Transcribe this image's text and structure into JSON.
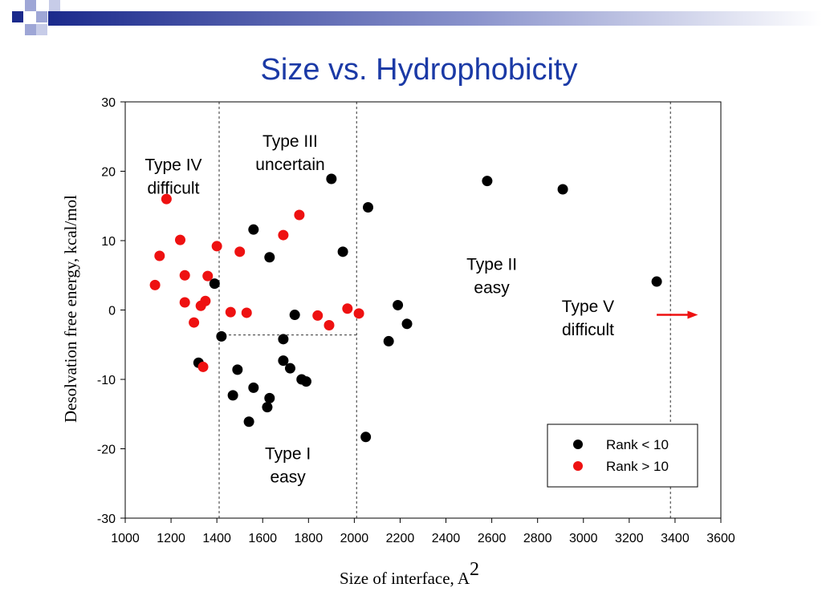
{
  "title": "Size vs. Hydrophobicity",
  "colors": {
    "title": "#1b3aa6",
    "black_series": "#000000",
    "red_series": "#ee1111",
    "decor_blue": "#1b2a8c",
    "decor_light": "#9ea6d6"
  },
  "chart_data": {
    "type": "scatter",
    "xlabel": "Size of interface, A",
    "xlabel_superscript": "2",
    "ylabel": "Desolvation free energy, kcal/mol",
    "xlim": [
      1000,
      3600
    ],
    "ylim": [
      -30,
      30
    ],
    "xticks": [
      1000,
      1200,
      1400,
      1600,
      1800,
      2000,
      2200,
      2400,
      2600,
      2800,
      3000,
      3200,
      3400,
      3600
    ],
    "yticks": [
      -30,
      -20,
      -10,
      0,
      10,
      20,
      30
    ],
    "grid": false,
    "legend_position": "bottom-right",
    "series": [
      {
        "name": "Rank < 10",
        "color": "#000000",
        "points": [
          [
            1390,
            3.8
          ],
          [
            1420,
            -3.8
          ],
          [
            1320,
            -7.6
          ],
          [
            1490,
            -8.6
          ],
          [
            1470,
            -12.3
          ],
          [
            1560,
            11.6
          ],
          [
            1630,
            7.6
          ],
          [
            1560,
            -11.2
          ],
          [
            1540,
            -16.1
          ],
          [
            1630,
            -12.7
          ],
          [
            1620,
            -14.0
          ],
          [
            1690,
            -4.2
          ],
          [
            1690,
            -7.3
          ],
          [
            1720,
            -8.4
          ],
          [
            1740,
            -0.7
          ],
          [
            1770,
            -10.0
          ],
          [
            1790,
            -10.3
          ],
          [
            1900,
            18.9
          ],
          [
            1950,
            8.4
          ],
          [
            2060,
            14.8
          ],
          [
            2050,
            -18.3
          ],
          [
            2150,
            -4.5
          ],
          [
            2190,
            0.7
          ],
          [
            2230,
            -2.0
          ],
          [
            2580,
            18.6
          ],
          [
            2910,
            17.4
          ],
          [
            3320,
            4.1
          ]
        ]
      },
      {
        "name": "Rank > 10",
        "color": "#ee1111",
        "points": [
          [
            1180,
            16.0
          ],
          [
            1150,
            7.8
          ],
          [
            1130,
            3.6
          ],
          [
            1240,
            10.1
          ],
          [
            1260,
            5.0
          ],
          [
            1260,
            1.1
          ],
          [
            1300,
            -1.8
          ],
          [
            1330,
            0.6
          ],
          [
            1350,
            1.3
          ],
          [
            1340,
            -8.2
          ],
          [
            1360,
            4.9
          ],
          [
            1400,
            9.2
          ],
          [
            1460,
            -0.3
          ],
          [
            1500,
            8.4
          ],
          [
            1530,
            -0.4
          ],
          [
            1690,
            10.8
          ],
          [
            1760,
            13.7
          ],
          [
            1840,
            -0.8
          ],
          [
            1890,
            -2.2
          ],
          [
            1970,
            0.2
          ],
          [
            2020,
            -0.5
          ]
        ]
      }
    ],
    "boundaries": {
      "vertical_lines_x": [
        1410,
        2010,
        3380
      ],
      "horizontal_segment": {
        "y": -3.6,
        "x_from": 1410,
        "x_to": 2010
      }
    },
    "annotations": [
      {
        "id": "type4",
        "lines": [
          "Type IV",
          "difficult"
        ],
        "x": 1210,
        "y": 20.1,
        "color": "#000000"
      },
      {
        "id": "type3",
        "lines": [
          "Type III",
          "uncertain"
        ],
        "x": 1720,
        "y": 23.5,
        "color": "#000000"
      },
      {
        "id": "type2",
        "lines": [
          "Type II",
          "easy"
        ],
        "x": 2600,
        "y": 5.8,
        "color": "#000000"
      },
      {
        "id": "type1",
        "lines": [
          "Type I",
          "easy"
        ],
        "x": 1710,
        "y": -21.5,
        "color": "#000000"
      },
      {
        "id": "type5",
        "lines": [
          "Type V",
          "difficult"
        ],
        "x": 3020,
        "y": -0.3,
        "color": "#ee1111"
      }
    ],
    "arrow": {
      "from": [
        3320,
        -0.7
      ],
      "to": [
        3500,
        -0.7
      ],
      "color": "#ee1111"
    }
  }
}
